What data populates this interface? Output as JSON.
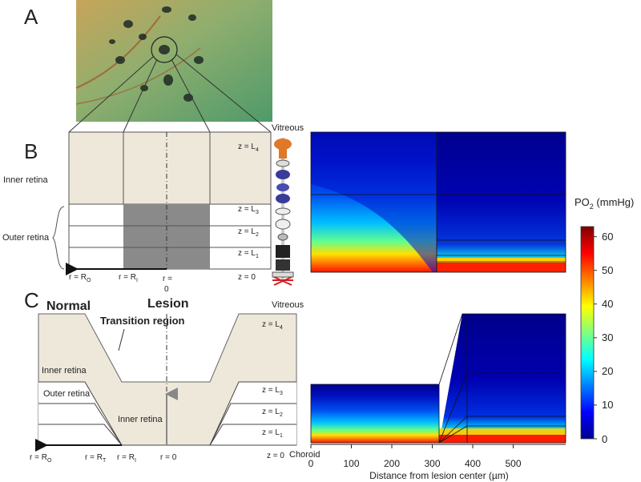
{
  "panel_labels": {
    "a": "A",
    "b": "B",
    "c": "C"
  },
  "panel_b": {
    "z_labels": [
      {
        "base": "z = L",
        "sub": "4"
      },
      {
        "base": "z = L",
        "sub": "3"
      },
      {
        "base": "z = L",
        "sub": "2"
      },
      {
        "base": "z = L",
        "sub": "1"
      },
      {
        "base": "z = 0",
        "sub": ""
      }
    ],
    "r_labels": [
      {
        "base": "r = R",
        "sub": "O"
      },
      {
        "base": "r = R",
        "sub": "I"
      }
    ],
    "r_zero_lines": [
      "r =",
      "0"
    ],
    "inner_retina": "Inner retina",
    "outer_retina": "Outer retina",
    "vitreous": "Vitreous"
  },
  "panel_c": {
    "normal": "Normal",
    "lesion": "Lesion",
    "transition": "Transition region",
    "vitreous": "Vitreous",
    "inner_retina_left": "Inner retina",
    "outer_retina_left": "Outer retina",
    "inner_retina_center": "Inner retina",
    "z_top": {
      "base": "z = L",
      "sub": "4"
    },
    "z_labels": [
      {
        "base": "z = L",
        "sub": "3"
      },
      {
        "base": "z = L",
        "sub": "2"
      },
      {
        "base": "z = L",
        "sub": "1"
      },
      {
        "base": "z = 0",
        "sub": ""
      }
    ],
    "r_labels": [
      {
        "base": "r = R",
        "sub": "O"
      },
      {
        "base": "r = R",
        "sub": "T"
      },
      {
        "base": "r = R",
        "sub": "I"
      },
      {
        "base": "r = 0",
        "sub": ""
      }
    ],
    "choroid": "Choroid"
  },
  "colorbar": {
    "title_base": "PO",
    "title_sub": "2",
    "title_unit": " (mmHg)",
    "ticks": [
      "60",
      "50",
      "40",
      "30",
      "20",
      "10",
      "0"
    ],
    "range": [
      0,
      63
    ]
  },
  "x_axis": {
    "ticks": [
      "0",
      "100",
      "200",
      "300",
      "400",
      "500"
    ],
    "label": "Distance from lesion center (µm)"
  },
  "colors": {
    "tissue": "#ede8da",
    "lesion": "#8a8a8a",
    "line": "#333333"
  }
}
